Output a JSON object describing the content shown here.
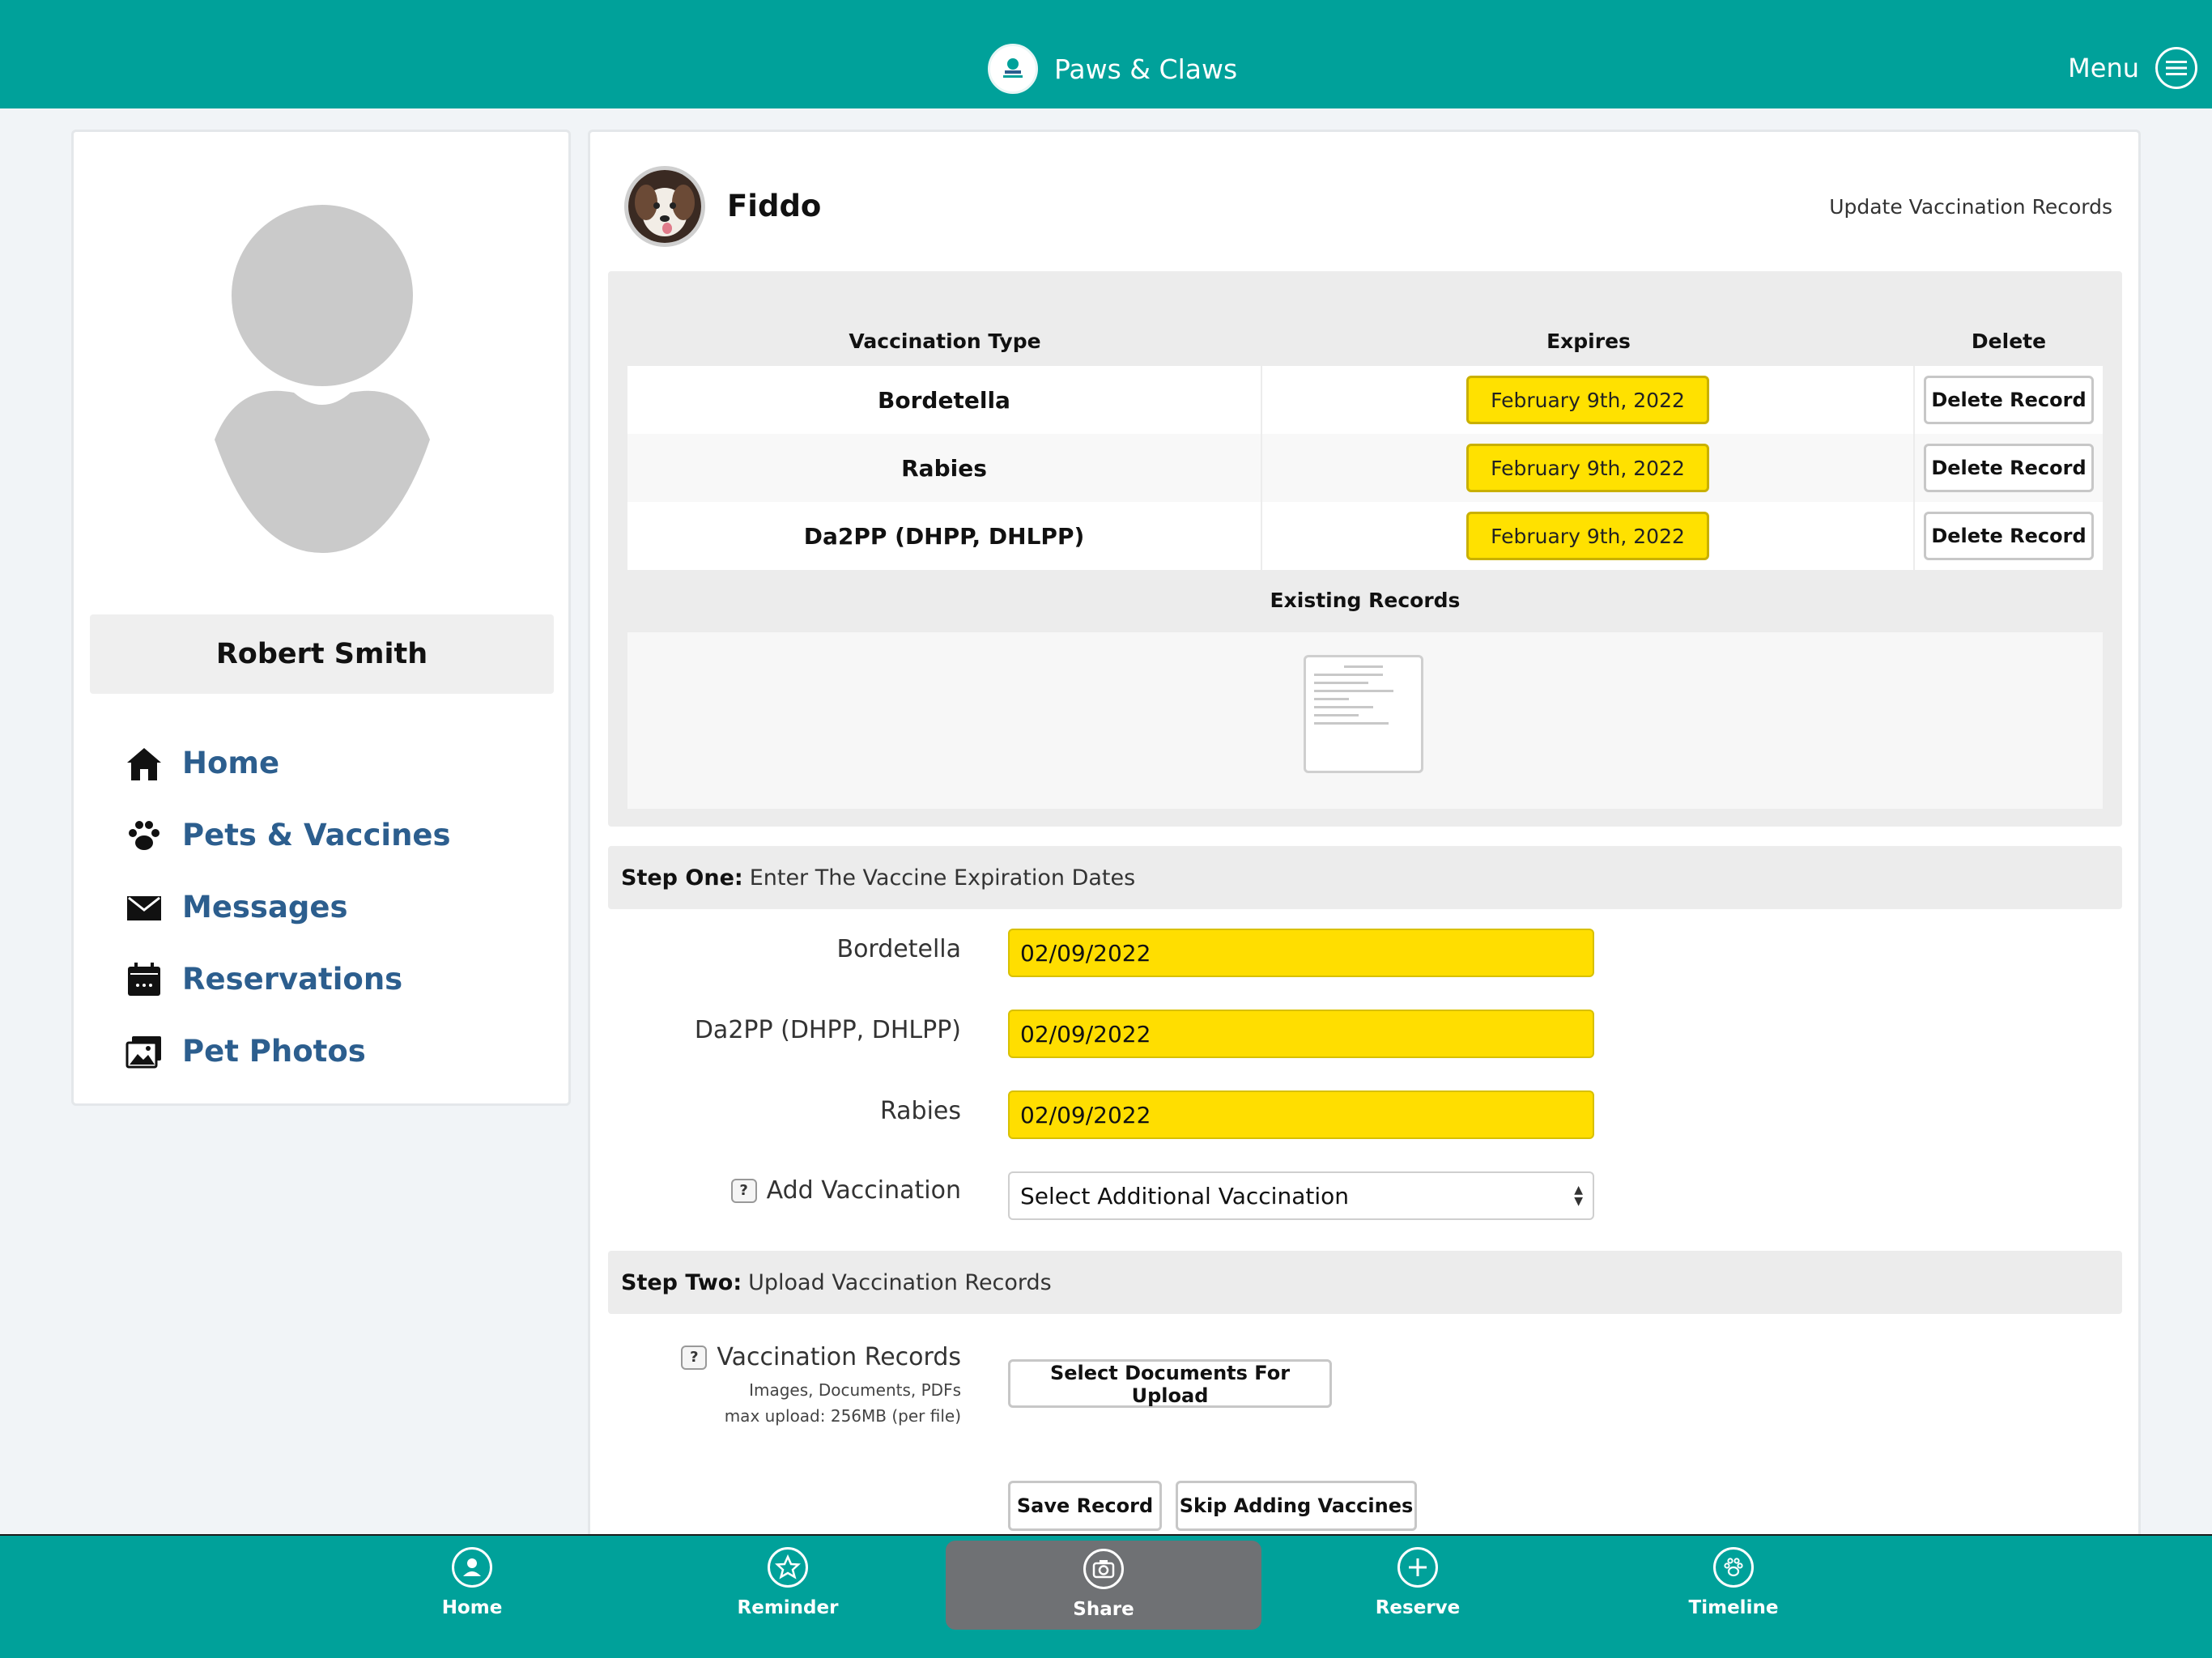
{
  "header": {
    "app_name": "Paws & Claws",
    "menu_label": "Menu"
  },
  "profile": {
    "name": "Robert Smith"
  },
  "nav": [
    {
      "label": "Home",
      "icon": "home-icon"
    },
    {
      "label": "Pets & Vaccines",
      "icon": "paw-icon"
    },
    {
      "label": "Messages",
      "icon": "envelope-icon"
    },
    {
      "label": "Reservations",
      "icon": "calendar-icon"
    },
    {
      "label": "Pet Photos",
      "icon": "photos-icon"
    }
  ],
  "pet": {
    "name": "Fiddo",
    "update_link": "Update Vaccination Records"
  },
  "records": {
    "headers": {
      "type": "Vaccination Type",
      "expires": "Expires",
      "delete": "Delete"
    },
    "rows": [
      {
        "type": "Bordetella",
        "expires": "February 9th, 2022",
        "action": "Delete Record"
      },
      {
        "type": "Rabies",
        "expires": "February 9th, 2022",
        "action": "Delete Record"
      },
      {
        "type": "Da2PP (DHPP, DHLPP)",
        "expires": "February 9th, 2022",
        "action": "Delete Record"
      }
    ],
    "existing_title": "Existing Records"
  },
  "step_one": {
    "bold": "Step One:",
    "text": "Enter The Vaccine Expiration Dates",
    "fields": [
      {
        "label": "Bordetella",
        "value": "02/09/2022"
      },
      {
        "label": "Da2PP (DHPP, DHLPP)",
        "value": "02/09/2022"
      },
      {
        "label": "Rabies",
        "value": "02/09/2022"
      }
    ],
    "add_label": "Add Vaccination",
    "add_select": "Select Additional Vaccination",
    "help_glyph": "?"
  },
  "step_two": {
    "bold": "Step Two:",
    "text": "Upload Vaccination Records",
    "label": "Vaccination Records",
    "note_types": "Images, Documents, PDFs",
    "note_max": "max upload: 256MB (per file)",
    "upload_button": "Select Documents For Upload"
  },
  "actions": {
    "save": "Save Record",
    "skip": "Skip Adding Vaccines"
  },
  "tabbar": [
    {
      "label": "Home",
      "icon": "user-circle-icon"
    },
    {
      "label": "Reminder",
      "icon": "star-icon"
    },
    {
      "label": "Share",
      "icon": "camera-icon",
      "active": true
    },
    {
      "label": "Reserve",
      "icon": "plus-icon"
    },
    {
      "label": "Timeline",
      "icon": "paw-circle-icon"
    }
  ],
  "colors": {
    "teal": "#00a19a",
    "highlight": "#ffe100",
    "nav_link": "#2c5e8e"
  }
}
